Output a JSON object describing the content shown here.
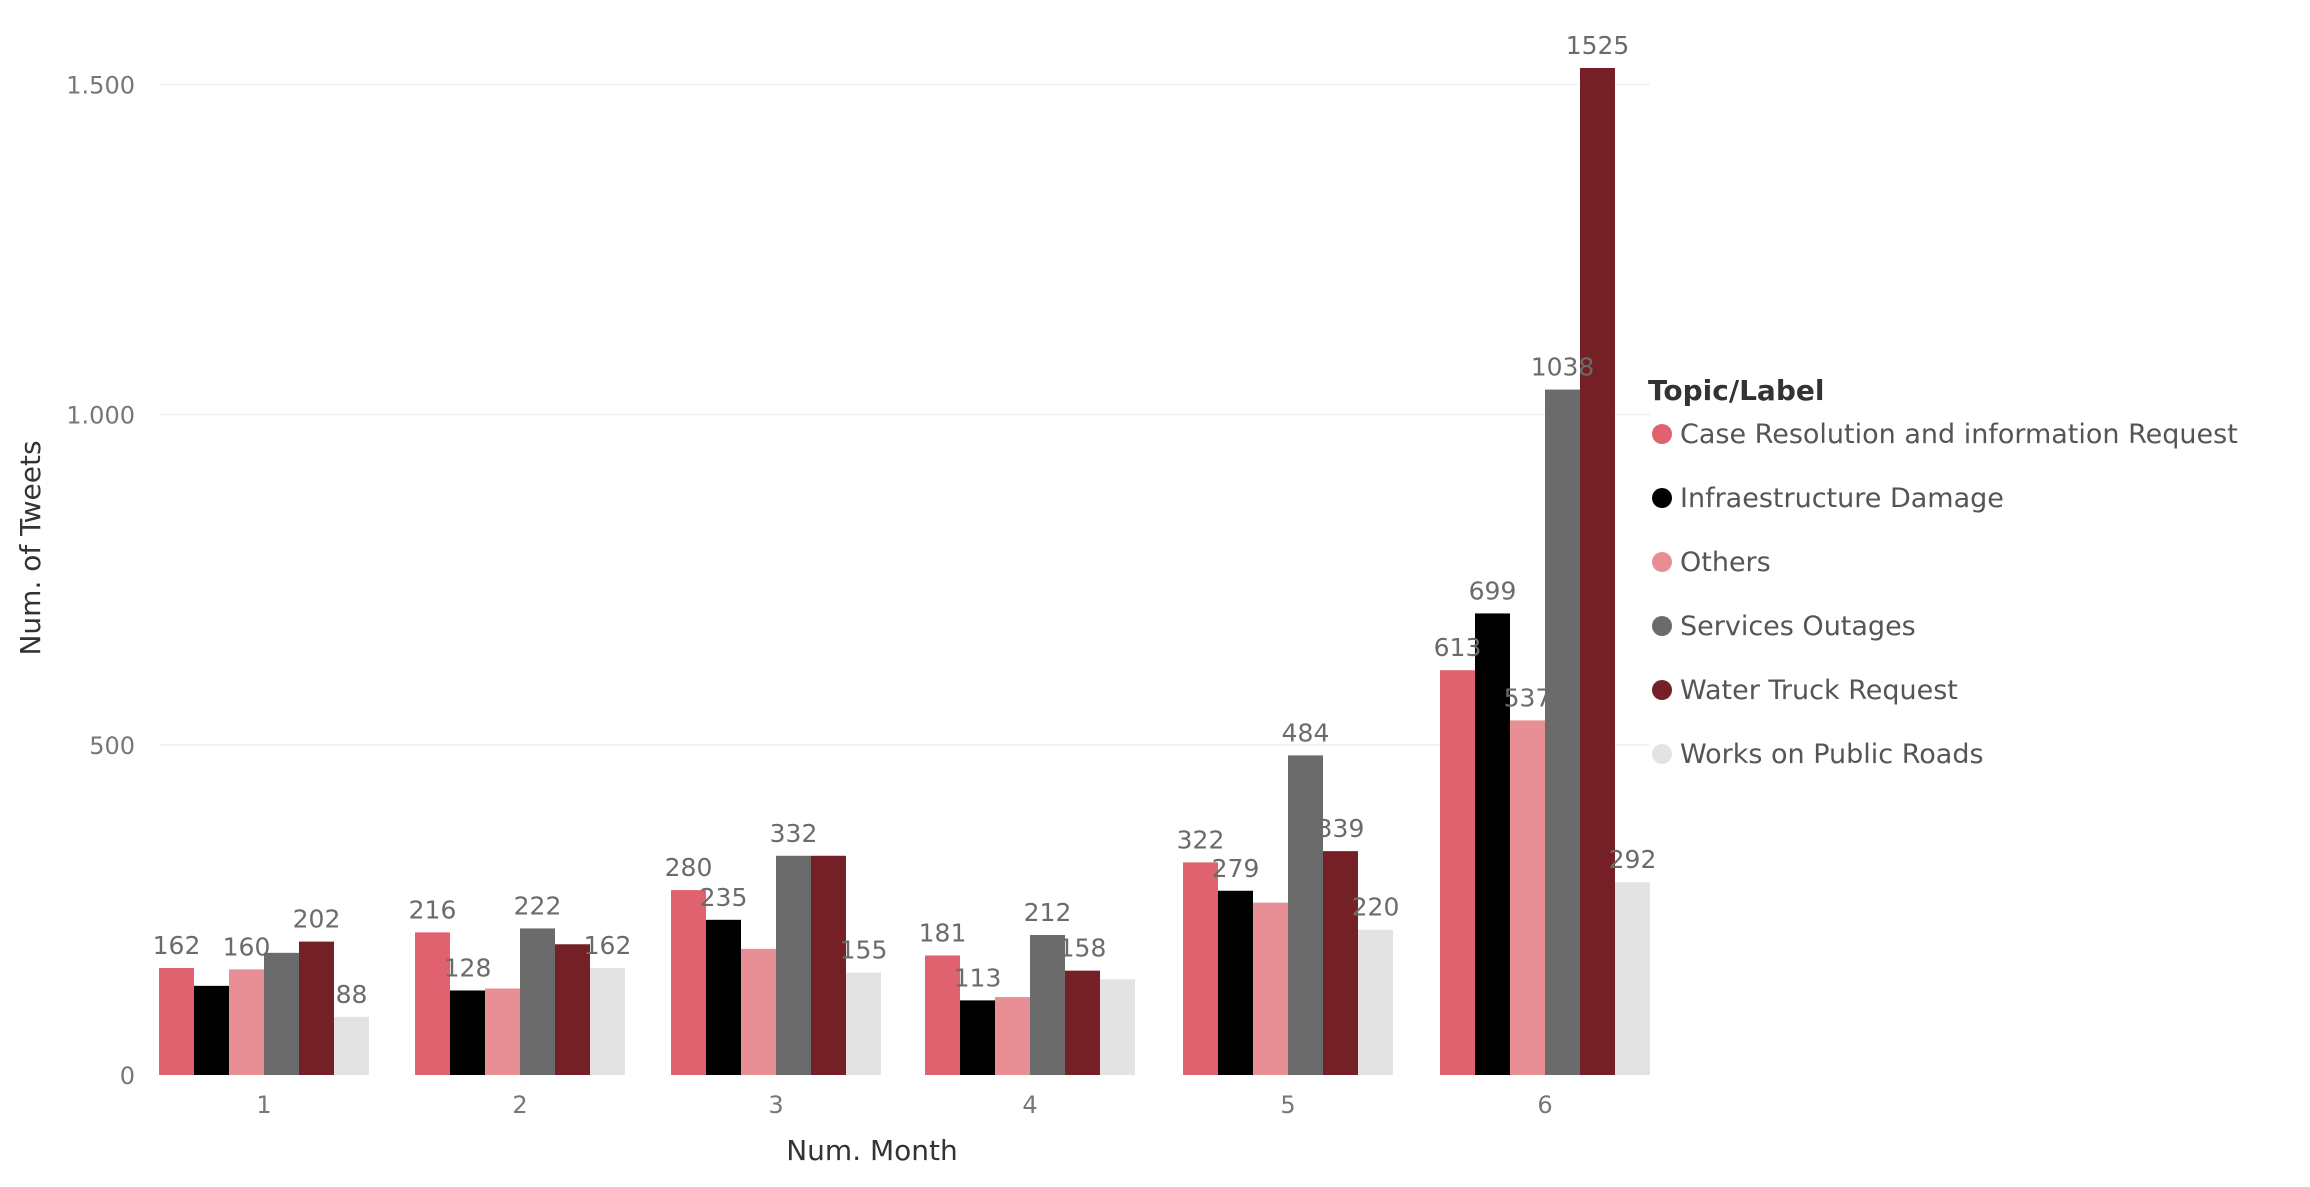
{
  "chart_data": {
    "type": "bar",
    "xlabel": "Num. Month",
    "ylabel": "Num. of Tweets",
    "ylim": [
      0,
      1525
    ],
    "yticks": [
      0,
      500,
      1000,
      1500
    ],
    "ytick_labels": [
      "0",
      "500",
      "1.000",
      "1.500"
    ],
    "grid": true,
    "categories": [
      "1",
      "2",
      "3",
      "4",
      "5",
      "6"
    ],
    "legend": {
      "title": "Topic/Label",
      "position": "right"
    },
    "series": [
      {
        "name": "Case Resolution and information Request",
        "color": "#e0626f",
        "values": [
          162,
          216,
          280,
          181,
          322,
          613
        ],
        "labels": [
          "162",
          "216",
          "280",
          "181",
          "322",
          "613"
        ]
      },
      {
        "name": "Infraestructure Damage",
        "color": "#000000",
        "values": [
          135,
          128,
          235,
          113,
          279,
          699
        ],
        "labels": [
          "",
          "128",
          "235",
          "113",
          "279",
          "699"
        ]
      },
      {
        "name": "Others",
        "color": "#e88f96",
        "values": [
          160,
          131,
          191,
          118,
          261,
          537
        ],
        "labels": [
          "160",
          "",
          "",
          "",
          "",
          "537"
        ]
      },
      {
        "name": "Services Outages",
        "color": "#6b6b6b",
        "values": [
          185,
          222,
          332,
          212,
          484,
          1038
        ],
        "labels": [
          "",
          "222",
          "332",
          "212",
          "484",
          "1038"
        ]
      },
      {
        "name": "Water Truck Request",
        "color": "#751f27",
        "values": [
          202,
          198,
          332,
          158,
          339,
          1525
        ],
        "labels": [
          "202",
          "",
          "",
          "158",
          "339",
          "1525"
        ]
      },
      {
        "name": "Works on Public Roads",
        "color": "#e3e3e3",
        "values": [
          88,
          162,
          155,
          145,
          220,
          292
        ],
        "labels": [
          "88",
          "162",
          "155",
          "",
          "220",
          "292"
        ]
      }
    ]
  }
}
